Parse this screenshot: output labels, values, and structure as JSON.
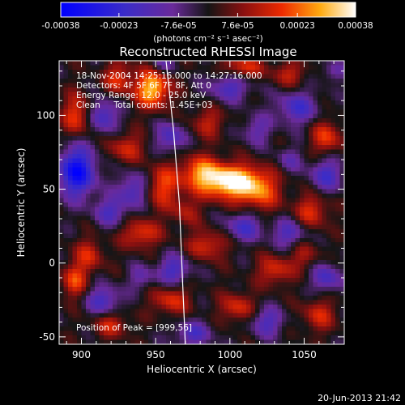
{
  "chart_data": {
    "type": "heatmap",
    "title": "Reconstructed RHESSI Image",
    "xlabel": "Heliocentric X (arcsec)",
    "ylabel": "Heliocentric Y (arcsec)",
    "xlim": [
      885,
      1077
    ],
    "ylim": [
      -55,
      137
    ],
    "x_ticks": [
      "900",
      "950",
      "1000",
      "1050"
    ],
    "x_tick_values": [
      900,
      950,
      1000,
      1050
    ],
    "y_ticks": [
      "-50",
      "0",
      "50",
      "100"
    ],
    "y_tick_values": [
      -50,
      0,
      50,
      100
    ],
    "colorbar": {
      "ticks": [
        "-0.00038",
        "-0.00023",
        "-7.6e-05",
        "7.6e-05",
        "0.00023",
        "0.00038"
      ],
      "tick_values": [
        -0.00038,
        -0.00023,
        -7.6e-05,
        7.6e-05,
        0.00023,
        0.00038
      ],
      "range": [
        -0.00038,
        0.00038
      ],
      "unit_label": "(photons cm⁻² s⁻¹ asec⁻²)"
    },
    "annotations": {
      "time_range": "18-Nov-2004 14:25:16.000 to 14:27:16.000",
      "detectors": "Detectors: 4F 5F 6F 7F 8F, Att 0",
      "energy": "Energy Range: 12.0 - 25.0 keV",
      "clean": "Clean     Total counts: 1.45E+03",
      "peak": "Position of Peak = [999,56]"
    },
    "peak": {
      "x": 999,
      "y": 56,
      "value": 0.00038
    },
    "limb_line": [
      [
        957,
        137
      ],
      [
        962,
        90
      ],
      [
        966,
        40
      ],
      [
        968,
        -10
      ],
      [
        970,
        -55
      ]
    ],
    "sources": [
      {
        "x": 1000,
        "y": 55,
        "amp": 1.0,
        "sx": 14,
        "sy": 8
      },
      {
        "x": 980,
        "y": 62,
        "amp": 0.55,
        "sx": 10,
        "sy": 8
      },
      {
        "x": 1020,
        "y": 48,
        "amp": 0.5,
        "sx": 10,
        "sy": 10
      },
      {
        "x": 948,
        "y": 118,
        "amp": 0.85,
        "sx": 8,
        "sy": 9
      },
      {
        "x": 925,
        "y": 125,
        "amp": 0.45,
        "sx": 7,
        "sy": 8
      },
      {
        "x": 1008,
        "y": 132,
        "amp": 0.5,
        "sx": 10,
        "sy": 6
      },
      {
        "x": 1040,
        "y": 128,
        "amp": 0.35,
        "sx": 8,
        "sy": 6
      },
      {
        "x": 897,
        "y": 100,
        "amp": 0.5,
        "sx": 7,
        "sy": 10
      },
      {
        "x": 955,
        "y": 52,
        "amp": 0.5,
        "sx": 8,
        "sy": 10
      },
      {
        "x": 930,
        "y": 78,
        "amp": 0.4,
        "sx": 9,
        "sy": 7
      },
      {
        "x": 1065,
        "y": 85,
        "amp": 0.5,
        "sx": 7,
        "sy": 8
      },
      {
        "x": 1055,
        "y": 35,
        "amp": 0.45,
        "sx": 8,
        "sy": 8
      },
      {
        "x": 940,
        "y": 20,
        "amp": 0.5,
        "sx": 9,
        "sy": 7
      },
      {
        "x": 985,
        "y": 12,
        "amp": 0.45,
        "sx": 9,
        "sy": 7
      },
      {
        "x": 1030,
        "y": -5,
        "amp": 0.45,
        "sx": 8,
        "sy": 7
      },
      {
        "x": 905,
        "y": 5,
        "amp": 0.4,
        "sx": 7,
        "sy": 8
      },
      {
        "x": 895,
        "y": -12,
        "amp": 0.5,
        "sx": 6,
        "sy": 8
      },
      {
        "x": 960,
        "y": -25,
        "amp": 0.45,
        "sx": 9,
        "sy": 7
      },
      {
        "x": 1005,
        "y": -30,
        "amp": 0.45,
        "sx": 8,
        "sy": 7
      },
      {
        "x": 1060,
        "y": -35,
        "amp": 0.4,
        "sx": 8,
        "sy": 8
      },
      {
        "x": 920,
        "y": -42,
        "amp": 0.4,
        "sx": 8,
        "sy": 6
      },
      {
        "x": 985,
        "y": 95,
        "amp": 0.35,
        "sx": 8,
        "sy": 7
      },
      {
        "x": 970,
        "y": 35,
        "amp": 0.3,
        "sx": 7,
        "sy": 7
      },
      {
        "x": 1050,
        "y": 5,
        "amp": 0.3,
        "sx": 7,
        "sy": 7
      }
    ],
    "negatives": [
      {
        "x": 897,
        "y": 62,
        "amp": 0.9,
        "sx": 9,
        "sy": 12
      },
      {
        "x": 915,
        "y": 100,
        "amp": 0.55,
        "sx": 7,
        "sy": 8
      },
      {
        "x": 935,
        "y": 50,
        "amp": 0.5,
        "sx": 7,
        "sy": 8
      },
      {
        "x": 1000,
        "y": 120,
        "amp": 0.5,
        "sx": 10,
        "sy": 7
      },
      {
        "x": 1045,
        "y": 105,
        "amp": 0.5,
        "sx": 10,
        "sy": 8
      },
      {
        "x": 1065,
        "y": 60,
        "amp": 0.5,
        "sx": 8,
        "sy": 8
      },
      {
        "x": 1040,
        "y": 70,
        "amp": 0.3,
        "sx": 6,
        "sy": 6
      },
      {
        "x": 960,
        "y": 85,
        "amp": 0.5,
        "sx": 7,
        "sy": 7
      },
      {
        "x": 1010,
        "y": 25,
        "amp": 0.5,
        "sx": 9,
        "sy": 7
      },
      {
        "x": 1040,
        "y": 20,
        "amp": 0.45,
        "sx": 8,
        "sy": 7
      },
      {
        "x": 962,
        "y": -5,
        "amp": 0.5,
        "sx": 8,
        "sy": 7
      },
      {
        "x": 920,
        "y": 35,
        "amp": 0.45,
        "sx": 8,
        "sy": 7
      },
      {
        "x": 915,
        "y": -25,
        "amp": 0.5,
        "sx": 8,
        "sy": 7
      },
      {
        "x": 1065,
        "y": -10,
        "amp": 0.5,
        "sx": 7,
        "sy": 7
      },
      {
        "x": 1025,
        "y": -40,
        "amp": 0.45,
        "sx": 8,
        "sy": 7
      },
      {
        "x": 975,
        "y": -48,
        "amp": 0.45,
        "sx": 9,
        "sy": 6
      },
      {
        "x": 940,
        "y": -10,
        "amp": 0.3,
        "sx": 6,
        "sy": 6
      },
      {
        "x": 1018,
        "y": 90,
        "amp": 0.35,
        "sx": 7,
        "sy": 7
      },
      {
        "x": 955,
        "y": 135,
        "amp": 0.3,
        "sx": 6,
        "sy": 5
      },
      {
        "x": 1070,
        "y": 130,
        "amp": 0.3,
        "sx": 6,
        "sy": 5
      }
    ]
  },
  "footer": {
    "date": "20-Jun-2013 21:42"
  }
}
